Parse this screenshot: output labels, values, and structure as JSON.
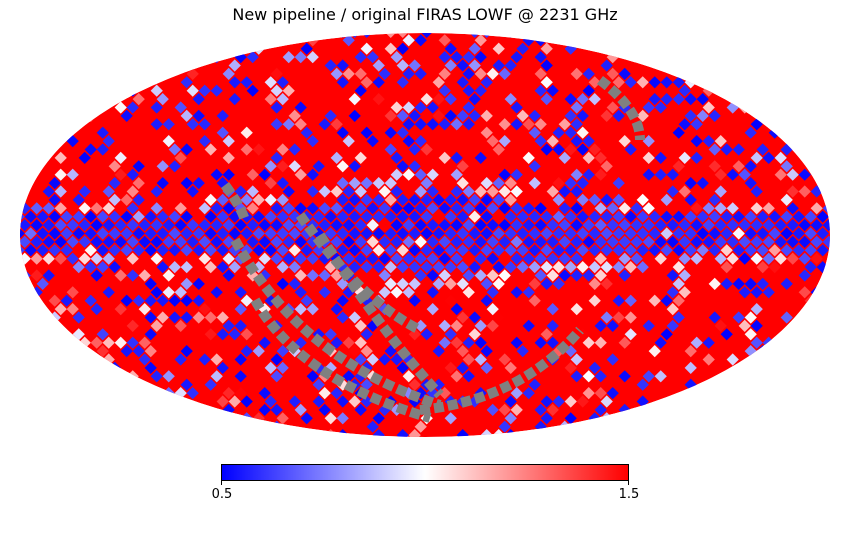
{
  "title": "New pipeline / original FIRAS LOWF @ 2231 GHz",
  "projection": "mollweide",
  "colormap": {
    "name": "bwr",
    "colors": [
      "#0000ff",
      "#ffffff",
      "#ff0000"
    ],
    "missing_color": "#808080",
    "min": 0.5,
    "max": 1.5,
    "min_label": "0.5",
    "max_label": "1.5"
  }
}
